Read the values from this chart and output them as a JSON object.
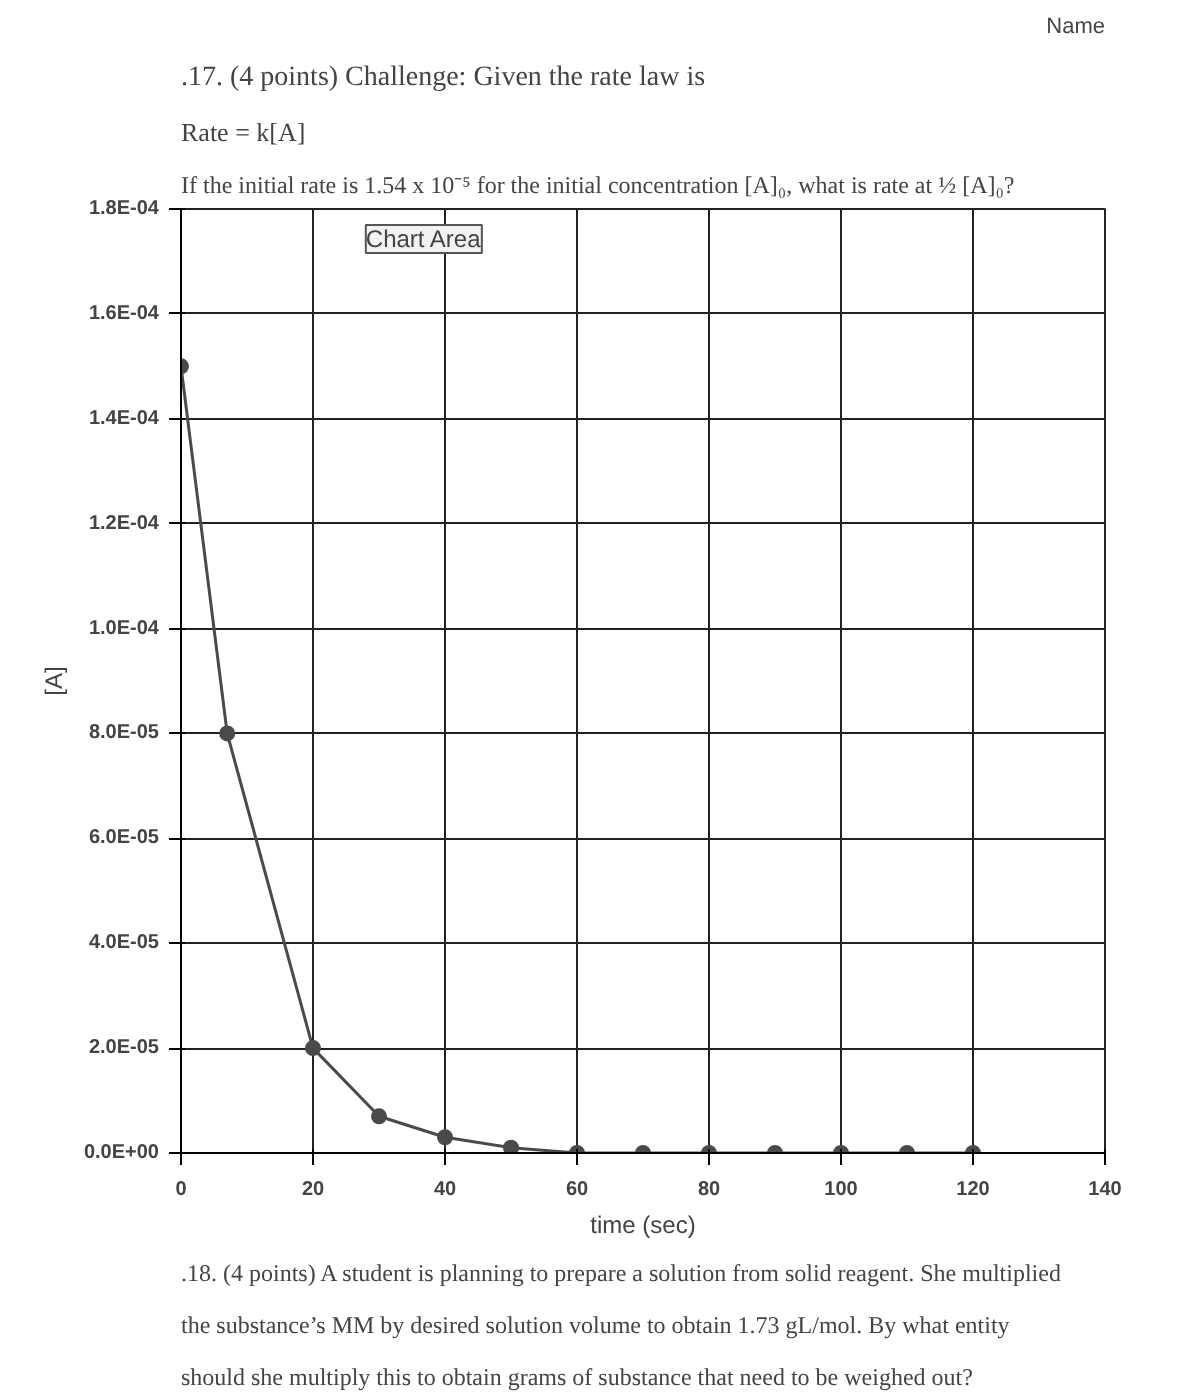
{
  "chart_data": {
    "type": "line",
    "title": ".17. (4 points) Challenge: Given the rate law is",
    "subtitle": "Rate = k[A]",
    "annotations": [
      "If the initial rate is 1.54 x 10⁻⁵ for the initial concentration [A]₀, what is rate at ½ [A]₀?",
      "Name",
      "Chart Area",
      ".18. (4 points) A student is planning to prepare a solution from solid reagent. She multiplied",
      "the substance’s MM by desired solution volume to obtain 1.73 gL/mol. By what entity",
      "should she multiply this to obtain grams of substance that need to be weighed out?"
    ],
    "xlabel": "time (sec)",
    "ylabel": "[A]",
    "series": [
      {
        "color": "#4a4a4a",
        "x": [
          0,
          7,
          20,
          30,
          40,
          50,
          60,
          70,
          80,
          90,
          100,
          110,
          120
        ],
        "values": [
          0.00015,
          8e-05,
          2e-05,
          7e-06,
          3e-06,
          1e-06,
          0,
          0,
          0,
          0,
          0,
          0,
          0
        ]
      }
    ],
    "xlim": [
      0,
      140
    ],
    "xticks": [
      0,
      20,
      40,
      60,
      80,
      100,
      120,
      140
    ],
    "ylim": [
      0,
      0.00018
    ],
    "yticks": [
      {
        "value": 0,
        "label": "0.0E+00"
      },
      {
        "value": 2e-05,
        "label": "2.0E-05"
      },
      {
        "value": 4e-05,
        "label": "4.0E-05"
      },
      {
        "value": 6e-05,
        "label": "6.0E-05"
      },
      {
        "value": 8e-05,
        "label": "8.0E-05"
      },
      {
        "value": 0.0001,
        "label": "1.0E-04"
      },
      {
        "value": 0.00012,
        "label": "1.2E-04"
      },
      {
        "value": 0.00014,
        "label": "1.4E-04"
      },
      {
        "value": 0.00016,
        "label": "1.6E-04"
      },
      {
        "value": 0.00018,
        "label": "1.8E-04"
      }
    ],
    "grid": true,
    "marker": "circle",
    "line_style": "solid"
  }
}
